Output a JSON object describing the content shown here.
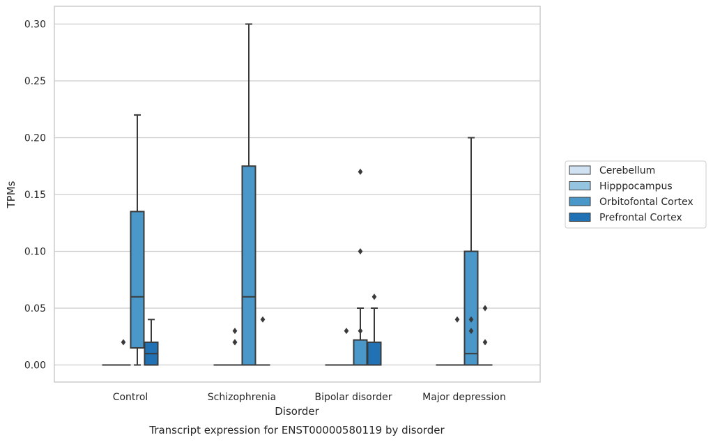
{
  "chart_data": {
    "type": "box",
    "title": "",
    "caption": "Transcript expression for ENST00000580119 by disorder",
    "xlabel": "Disorder",
    "ylabel": "TPMs",
    "ylim": [
      -0.015,
      0.315
    ],
    "yticks": [
      0.0,
      0.05,
      0.1,
      0.15,
      0.2,
      0.25,
      0.3
    ],
    "ytick_labels": [
      "0.00",
      "0.05",
      "0.10",
      "0.15",
      "0.20",
      "0.25",
      "0.30"
    ],
    "grid": true,
    "legend_position": "right",
    "categories": [
      "Control",
      "Schizophrenia",
      "Bipolar disorder",
      "Major depression"
    ],
    "series": [
      {
        "name": "Cerebellum",
        "color": "#d0e1f2",
        "boxes": [
          {
            "q1": 0,
            "median": 0,
            "q3": 0,
            "whislo": 0,
            "whishi": 0,
            "fliers": []
          },
          {
            "q1": 0,
            "median": 0,
            "q3": 0,
            "whislo": 0,
            "whishi": 0,
            "fliers": []
          },
          {
            "q1": 0,
            "median": 0,
            "q3": 0,
            "whislo": 0,
            "whishi": 0,
            "fliers": []
          },
          {
            "q1": 0,
            "median": 0,
            "q3": 0,
            "whislo": 0,
            "whishi": 0,
            "fliers": []
          }
        ]
      },
      {
        "name": "Hipppocampus",
        "color": "#94c4df",
        "boxes": [
          {
            "q1": 0,
            "median": 0,
            "q3": 0,
            "whislo": 0,
            "whishi": 0,
            "fliers": [
              0.02
            ]
          },
          {
            "q1": 0,
            "median": 0,
            "q3": 0,
            "whislo": 0,
            "whishi": 0,
            "fliers": [
              0.02,
              0.03,
              0.02
            ]
          },
          {
            "q1": 0,
            "median": 0,
            "q3": 0,
            "whislo": 0,
            "whishi": 0,
            "fliers": [
              0.03
            ]
          },
          {
            "q1": 0,
            "median": 0,
            "q3": 0,
            "whislo": 0,
            "whishi": 0,
            "fliers": [
              0.04
            ]
          }
        ]
      },
      {
        "name": "Orbitofontal Cortex",
        "color": "#4a98c9",
        "boxes": [
          {
            "q1": 0.015,
            "median": 0.06,
            "q3": 0.135,
            "whislo": 0,
            "whishi": 0.22,
            "fliers": []
          },
          {
            "q1": 0,
            "median": 0.06,
            "q3": 0.175,
            "whislo": 0,
            "whishi": 0.3,
            "fliers": []
          },
          {
            "q1": 0,
            "median": 0,
            "q3": 0.022,
            "whislo": 0,
            "whishi": 0.05,
            "fliers": [
              0.03,
              0.1,
              0.17
            ]
          },
          {
            "q1": 0,
            "median": 0.01,
            "q3": 0.1,
            "whislo": 0,
            "whishi": 0.2,
            "fliers": [
              0.03,
              0.04
            ]
          }
        ]
      },
      {
        "name": "Prefrontal Cortex",
        "color": "#2171b5",
        "boxes": [
          {
            "q1": 0,
            "median": 0.01,
            "q3": 0.02,
            "whislo": 0,
            "whishi": 0.04,
            "fliers": []
          },
          {
            "q1": 0,
            "median": 0,
            "q3": 0,
            "whislo": 0,
            "whishi": 0,
            "fliers": [
              0.04
            ]
          },
          {
            "q1": 0,
            "median": 0,
            "q3": 0.02,
            "whislo": 0,
            "whishi": 0.05,
            "fliers": [
              0.06
            ]
          },
          {
            "q1": 0,
            "median": 0,
            "q3": 0,
            "whislo": 0,
            "whishi": 0,
            "fliers": [
              0.02,
              0.05
            ]
          }
        ]
      }
    ]
  }
}
